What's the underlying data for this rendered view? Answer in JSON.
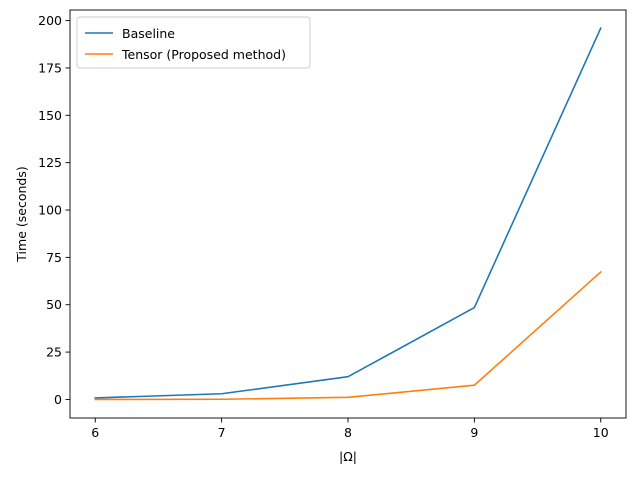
{
  "chart_data": {
    "type": "line",
    "title": "",
    "xlabel": "|Ω|",
    "ylabel": "Time (seconds)",
    "x": [
      6,
      7,
      8,
      9,
      10
    ],
    "xlim": [
      5.8,
      10.2
    ],
    "ylim": [
      -9.8,
      205.6
    ],
    "x_ticks": [
      6,
      7,
      8,
      9,
      10
    ],
    "y_ticks": [
      0,
      25,
      50,
      75,
      100,
      125,
      150,
      175,
      200
    ],
    "grid": false,
    "legend_position": "upper-left",
    "series": [
      {
        "name": "Baseline",
        "color": "#1f77b4",
        "values": [
          0.8,
          3.0,
          12.0,
          48.5,
          196.0
        ]
      },
      {
        "name": "Tensor (Proposed method)",
        "color": "#ff7f0e",
        "values": [
          0.0,
          0.1,
          1.1,
          7.5,
          67.3
        ]
      }
    ]
  }
}
